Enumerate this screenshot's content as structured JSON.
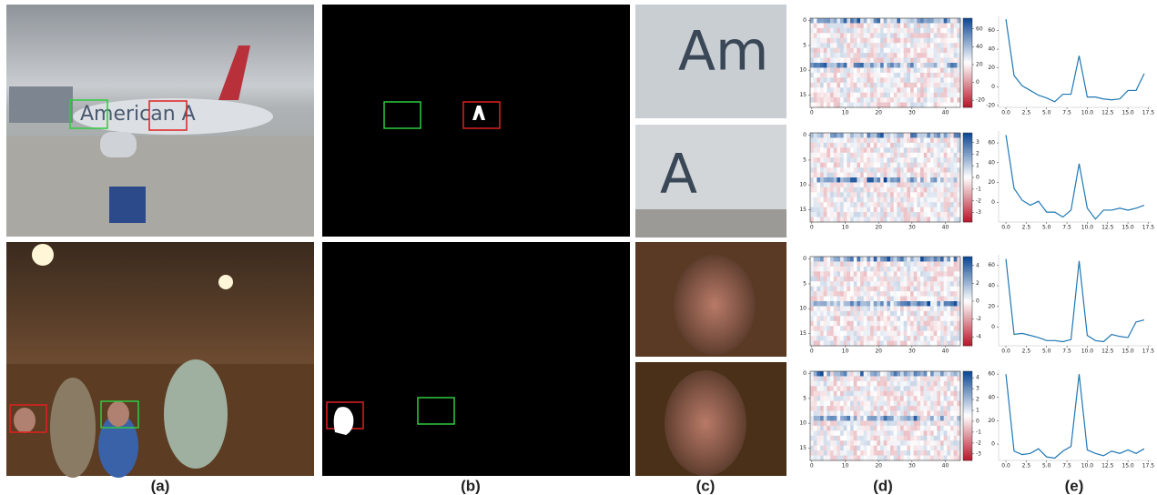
{
  "figure": {
    "panel_labels": [
      "(a)",
      "(b)",
      "(c)",
      "(d)",
      "(e)"
    ],
    "heatmaps": [
      {
        "xlim": [
          -0.5,
          44.5
        ],
        "ylim": [
          17.5,
          -0.5
        ],
        "xticks": [
          0,
          10,
          20,
          30,
          40
        ],
        "yticks": [
          0,
          5,
          10,
          15
        ],
        "clim": [
          -28,
          72
        ],
        "cticks": [
          60,
          40,
          20,
          0,
          -20
        ]
      },
      {
        "xlim": [
          -0.5,
          44.5
        ],
        "ylim": [
          17.5,
          -0.5
        ],
        "xticks": [
          0,
          10,
          20,
          30,
          40
        ],
        "yticks": [
          0,
          5,
          10,
          15
        ],
        "clim": [
          -3.8,
          3.8
        ],
        "cticks": [
          3,
          2,
          1,
          0,
          -1,
          -2,
          -3
        ]
      },
      {
        "xlim": [
          -0.5,
          44.5
        ],
        "ylim": [
          17.5,
          -0.5
        ],
        "xticks": [
          0,
          10,
          20,
          30,
          40
        ],
        "yticks": [
          0,
          5,
          10,
          15
        ],
        "clim": [
          -5,
          5
        ],
        "cticks": [
          4,
          2,
          0,
          -2,
          -4
        ]
      },
      {
        "xlim": [
          -0.5,
          44.5
        ],
        "ylim": [
          17.5,
          -0.5
        ],
        "xticks": [
          0,
          10,
          20,
          30,
          40
        ],
        "yticks": [
          0,
          5,
          10,
          15
        ],
        "clim": [
          -3.6,
          4.6
        ],
        "cticks": [
          4,
          3,
          2,
          1,
          0,
          -1,
          -2,
          -3
        ]
      }
    ],
    "line_charts": [
      {
        "type": "line",
        "color": "#1f77b4",
        "x": [
          0,
          1,
          2,
          3,
          4,
          5,
          6,
          7,
          8,
          9,
          10,
          11,
          12,
          13,
          14,
          15,
          16,
          17
        ],
        "values": [
          72,
          12,
          1,
          -4,
          -9,
          -12,
          -16,
          -8,
          -8,
          33,
          -11,
          -11,
          -13,
          -14,
          -13,
          -4,
          -4,
          14
        ],
        "xlim": [
          -0.9,
          17.9
        ],
        "ylim": [
          -22,
          75
        ],
        "yticks": [
          -20,
          0,
          20,
          40,
          60
        ],
        "xticks": [
          {
            "value": 0,
            "label": "0.0"
          },
          {
            "value": 2.5,
            "label": "2.5"
          },
          {
            "value": 5,
            "label": "5.0"
          },
          {
            "value": 7.5,
            "label": "7.5"
          },
          {
            "value": 10,
            "label": "10.0"
          },
          {
            "value": 12.5,
            "label": "12.5"
          },
          {
            "value": 15,
            "label": "15.0"
          },
          {
            "value": 17.5,
            "label": "17.5"
          }
        ]
      },
      {
        "type": "line",
        "color": "#1f77b4",
        "x": [
          0,
          1,
          2,
          3,
          4,
          5,
          6,
          7,
          8,
          9,
          10,
          11,
          12,
          13,
          14,
          15,
          16,
          17
        ],
        "values": [
          68,
          14,
          2,
          -3,
          1,
          -10,
          -10,
          -15,
          -8,
          39,
          -6,
          -17,
          -8,
          -8,
          -6,
          -8,
          -6,
          -3
        ],
        "xlim": [
          -0.9,
          17.9
        ],
        "ylim": [
          -20,
          72
        ],
        "yticks": [
          0,
          20,
          40,
          60
        ],
        "xticks": [
          {
            "value": 0,
            "label": "0.0"
          },
          {
            "value": 2.5,
            "label": "2.5"
          },
          {
            "value": 5,
            "label": "5.0"
          },
          {
            "value": 7.5,
            "label": "7.5"
          },
          {
            "value": 10,
            "label": "10.0"
          },
          {
            "value": 12.5,
            "label": "12.5"
          },
          {
            "value": 15,
            "label": "15.0"
          },
          {
            "value": 17.5,
            "label": "17.5"
          }
        ]
      },
      {
        "type": "line",
        "color": "#1f77b4",
        "x": [
          0,
          1,
          2,
          3,
          4,
          5,
          6,
          7,
          8,
          9,
          10,
          11,
          12,
          13,
          14,
          15,
          16,
          17
        ],
        "values": [
          66,
          -7,
          -6,
          -8,
          -10,
          -13,
          -13,
          -14,
          -12,
          64,
          -8,
          -13,
          -14,
          -7,
          -9,
          -10,
          5,
          7
        ],
        "xlim": [
          -0.9,
          17.9
        ],
        "ylim": [
          -18,
          70
        ],
        "yticks": [
          0,
          20,
          40,
          60
        ],
        "xticks": [
          {
            "value": 0,
            "label": "0.0"
          },
          {
            "value": 2.5,
            "label": "2.5"
          },
          {
            "value": 5,
            "label": "5.0"
          },
          {
            "value": 7.5,
            "label": "7.5"
          },
          {
            "value": 10,
            "label": "10.0"
          },
          {
            "value": 12.5,
            "label": "12.5"
          },
          {
            "value": 15,
            "label": "15.0"
          },
          {
            "value": 17.5,
            "label": "17.5"
          }
        ]
      },
      {
        "type": "line",
        "color": "#1f77b4",
        "x": [
          0,
          1,
          2,
          3,
          4,
          5,
          6,
          7,
          8,
          9,
          10,
          11,
          12,
          13,
          14,
          15,
          16,
          17
        ],
        "values": [
          60,
          -6,
          -9,
          -8,
          -4,
          -11,
          -12,
          -6,
          -2,
          60,
          -5,
          -8,
          -10,
          -6,
          -8,
          -5,
          -8,
          -4
        ],
        "xlim": [
          -0.9,
          17.9
        ],
        "ylim": [
          -14,
          64
        ],
        "yticks": [
          0,
          20,
          40,
          60
        ],
        "xticks": [
          {
            "value": 0,
            "label": "0.0"
          },
          {
            "value": 2.5,
            "label": "2.5"
          },
          {
            "value": 5,
            "label": "5.0"
          },
          {
            "value": 7.5,
            "label": "7.5"
          },
          {
            "value": 10,
            "label": "10.0"
          },
          {
            "value": 12.5,
            "label": "12.5"
          },
          {
            "value": 15,
            "label": "15.0"
          },
          {
            "value": 17.5,
            "label": "17.5"
          }
        ]
      }
    ]
  }
}
